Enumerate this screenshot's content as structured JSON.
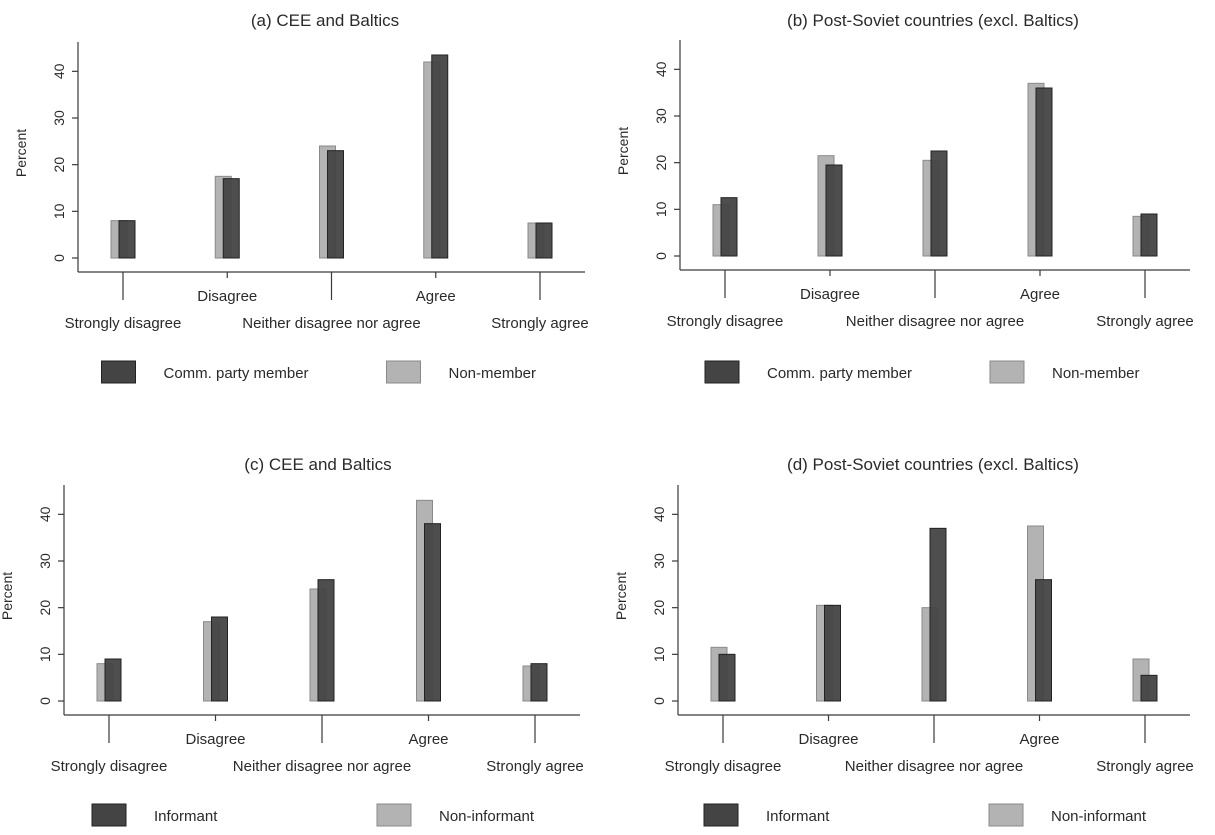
{
  "chart_data": [
    {
      "type": "bar",
      "title": "(a) CEE and Baltics",
      "ylabel": "Percent",
      "ylim": [
        0,
        45
      ],
      "yticks": [
        0,
        10,
        20,
        30,
        40
      ],
      "categories": [
        "Strongly disagree",
        "Disagree",
        "Neither disagree nor agree",
        "Agree",
        "Strongly agree"
      ],
      "series": [
        {
          "name": "Comm. party member",
          "color": "#444444",
          "values": [
            8,
            17,
            23,
            43.5,
            7.5
          ]
        },
        {
          "name": "Non-member",
          "color": "#b3b3b3",
          "values": [
            8,
            17.5,
            24,
            42,
            7.5
          ]
        }
      ],
      "legend": "bottom"
    },
    {
      "type": "bar",
      "title": "(b) Post-Soviet countries (excl. Baltics)",
      "ylabel": "Percent",
      "ylim": [
        0,
        45
      ],
      "yticks": [
        0,
        10,
        20,
        30,
        40
      ],
      "categories": [
        "Strongly disagree",
        "Disagree",
        "Neither disagree nor agree",
        "Agree",
        "Strongly agree"
      ],
      "series": [
        {
          "name": "Comm. party member",
          "color": "#444444",
          "values": [
            12.5,
            19.5,
            22.5,
            36,
            9
          ]
        },
        {
          "name": "Non-member",
          "color": "#b3b3b3",
          "values": [
            11,
            21.5,
            20.5,
            37,
            8.5
          ]
        }
      ],
      "legend": "bottom"
    },
    {
      "type": "bar",
      "title": "(c) CEE and Baltics",
      "ylabel": "Percent",
      "ylim": [
        0,
        45
      ],
      "yticks": [
        0,
        10,
        20,
        30,
        40
      ],
      "categories": [
        "Strongly disagree",
        "Disagree",
        "Neither disagree nor agree",
        "Agree",
        "Strongly agree"
      ],
      "series": [
        {
          "name": "Informant",
          "color": "#444444",
          "values": [
            9,
            18,
            26,
            38,
            8
          ]
        },
        {
          "name": "Non-informant",
          "color": "#b3b3b3",
          "values": [
            8,
            17,
            24,
            43,
            7.5
          ]
        }
      ],
      "legend": "bottom"
    },
    {
      "type": "bar",
      "title": "(d) Post-Soviet countries (excl. Baltics)",
      "ylabel": "Percent",
      "ylim": [
        0,
        45
      ],
      "yticks": [
        0,
        10,
        20,
        30,
        40
      ],
      "categories": [
        "Strongly disagree",
        "Disagree",
        "Neither disagree nor agree",
        "Agree",
        "Strongly agree"
      ],
      "series": [
        {
          "name": "Informant",
          "color": "#444444",
          "values": [
            10,
            20.5,
            37,
            26,
            5.5
          ]
        },
        {
          "name": "Non-informant",
          "color": "#b3b3b3",
          "values": [
            11.5,
            20.5,
            20,
            37.5,
            9
          ]
        }
      ],
      "legend": "bottom"
    }
  ]
}
